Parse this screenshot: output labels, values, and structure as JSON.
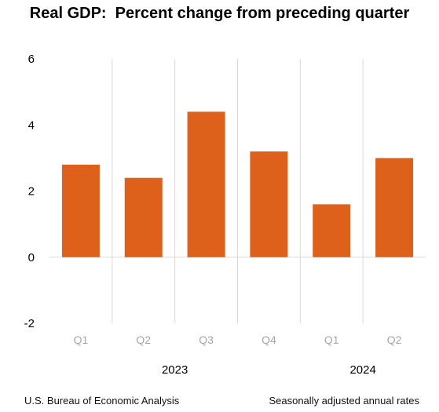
{
  "title": "Real GDP:  Percent change from preceding quarter",
  "footer": {
    "source": "U.S. Bureau of Economic Analysis",
    "note": "Seasonally adjusted annual rates"
  },
  "colors": {
    "bar": "#DD611A",
    "grid": "#D9D9D9",
    "axis_text": "#000000",
    "category_text": "#A6A6A6"
  },
  "chart_data": {
    "type": "bar",
    "title": "Real GDP:  Percent change from preceding quarter",
    "categories": [
      "Q1",
      "Q2",
      "Q3",
      "Q4",
      "Q1",
      "Q2"
    ],
    "groups": [
      {
        "label": "2023",
        "categories": [
          "Q1",
          "Q2",
          "Q3",
          "Q4"
        ]
      },
      {
        "label": "2024",
        "categories": [
          "Q1",
          "Q2"
        ]
      }
    ],
    "series": [
      {
        "values": [
          2.8,
          2.4,
          4.4,
          3.2,
          1.6,
          3.0
        ]
      }
    ],
    "ylim": [
      -2,
      6
    ],
    "yticks": [
      -2,
      0,
      2,
      4,
      6
    ],
    "xlabel": "",
    "ylabel": "",
    "grid": false
  }
}
